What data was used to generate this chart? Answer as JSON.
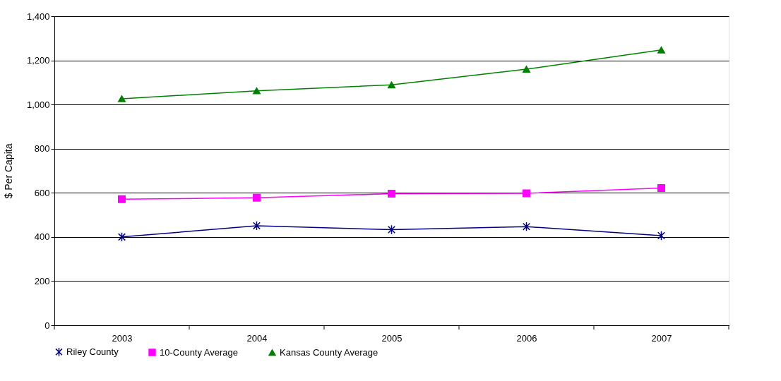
{
  "chart_data": {
    "type": "line",
    "ylabel": "$ Per Capita",
    "categories": [
      "2003",
      "2004",
      "2005",
      "2006",
      "2007"
    ],
    "series": [
      {
        "name": "Riley County",
        "color": "#000080",
        "marker": "cross",
        "values": [
          400,
          451,
          433,
          447,
          406
        ]
      },
      {
        "name": "10-County Average",
        "color": "#ff00ff",
        "marker": "square",
        "values": [
          571,
          578,
          596,
          598,
          622
        ]
      },
      {
        "name": "Kansas County Average",
        "color": "#008000",
        "marker": "triangle",
        "values": [
          1026,
          1062,
          1089,
          1160,
          1247
        ]
      }
    ],
    "ylim": [
      0,
      1400
    ],
    "yticks": [
      0,
      200,
      400,
      600,
      800,
      {
        "value": 1000,
        "label": "1,000"
      },
      {
        "value": 1200,
        "label": "1,200"
      },
      {
        "value": 1400,
        "label": "1,400"
      }
    ],
    "grid": "y",
    "legend": "bottom",
    "line_style": "solid"
  }
}
